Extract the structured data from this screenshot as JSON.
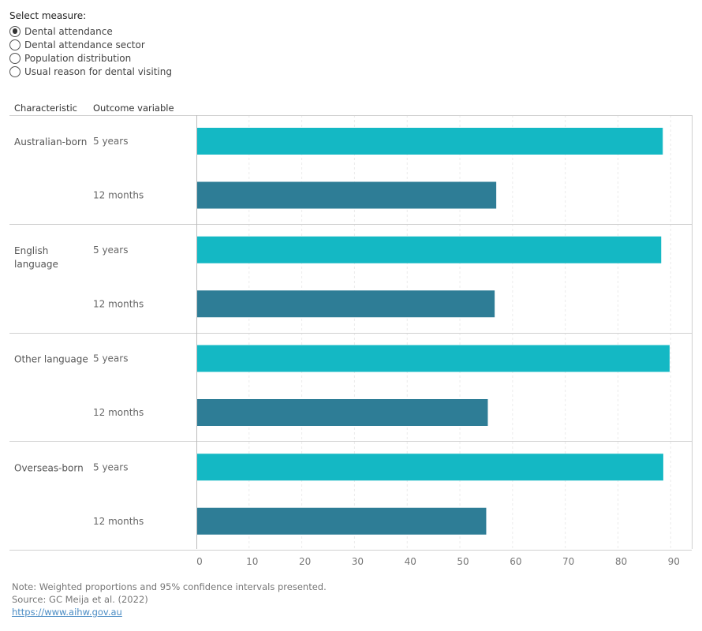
{
  "measure_selector": {
    "title": "Select measure:",
    "options": [
      {
        "label": "Dental attendance",
        "selected": true
      },
      {
        "label": "Dental attendance sector",
        "selected": false
      },
      {
        "label": "Population distribution",
        "selected": false
      },
      {
        "label": "Usual reason for dental visiting",
        "selected": false
      }
    ]
  },
  "table_headers": {
    "characteristic": "Characteristic",
    "outcome": "Outcome variable"
  },
  "colors": {
    "five_years": "#14b8c4",
    "twelve_months": "#2e7d96",
    "gridline": "#ebebeb",
    "divider": "#d0d0d0"
  },
  "chart_data": {
    "type": "bar",
    "orientation": "horizontal",
    "groups": [
      {
        "characteristic": "Australian-born",
        "bars": [
          {
            "outcome": "5 years",
            "value": 88.5
          },
          {
            "outcome": "12 months",
            "value": 56.9
          }
        ]
      },
      {
        "characteristic": "English language",
        "bars": [
          {
            "outcome": "5 years",
            "value": 88.2
          },
          {
            "outcome": "12 months",
            "value": 56.6
          }
        ]
      },
      {
        "characteristic": "Other language",
        "bars": [
          {
            "outcome": "5 years",
            "value": 89.8
          },
          {
            "outcome": "12 months",
            "value": 55.3
          }
        ]
      },
      {
        "characteristic": "Overseas-born",
        "bars": [
          {
            "outcome": "5 years",
            "value": 88.6
          },
          {
            "outcome": "12 months",
            "value": 55.0
          }
        ]
      }
    ],
    "xlim": [
      0,
      94
    ],
    "xticks": [
      0,
      10,
      20,
      30,
      40,
      50,
      60,
      70,
      80,
      90
    ],
    "grid": true
  },
  "footer": {
    "note": "Note: Weighted proportions and 95% confidence intervals presented.",
    "source": "Source: GC Meija et al. (2022)",
    "link": "https://www.aihw.gov.au"
  }
}
